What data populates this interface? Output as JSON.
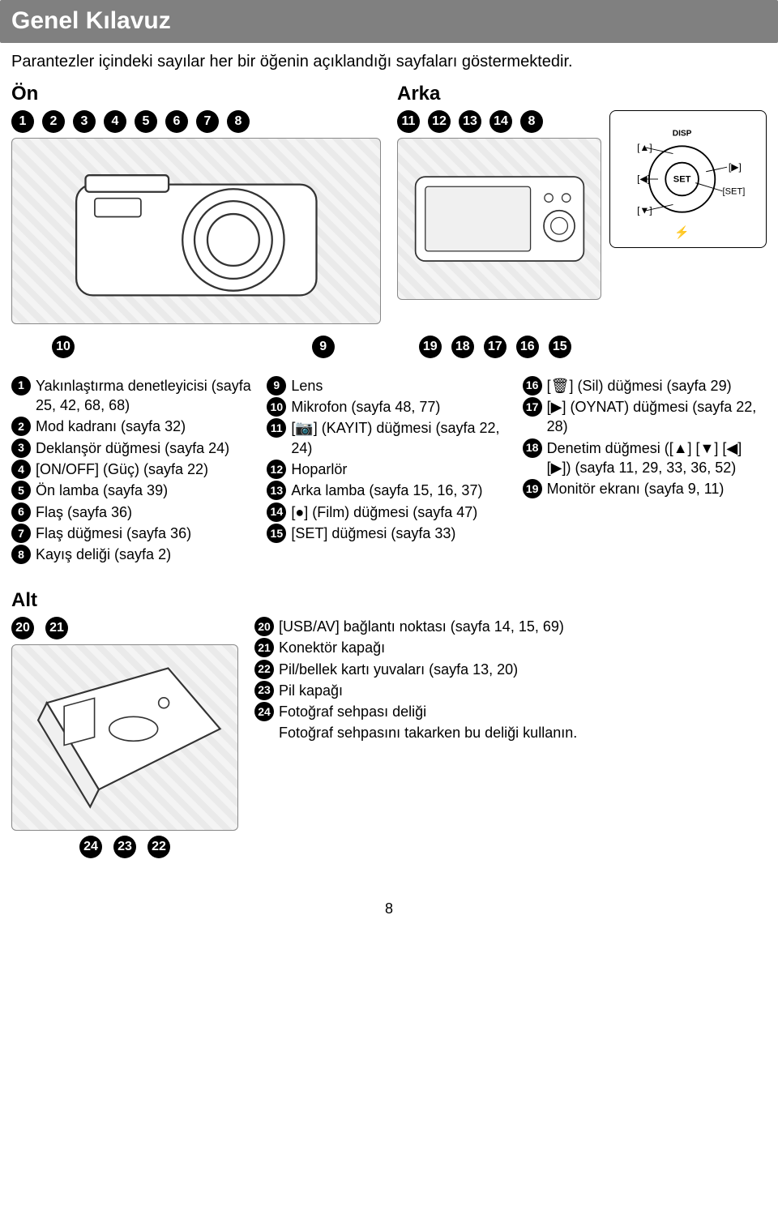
{
  "title": "Genel Kılavuz",
  "intro": "Parantezler içindeki sayılar her bir öğenin açıklandığı sayfaları göstermektedir.",
  "front_label": "Ön",
  "back_label": "Arka",
  "front_nums": [
    "1",
    "2",
    "3",
    "4",
    "5",
    "6",
    "7",
    "8"
  ],
  "back_nums": [
    "11",
    "12",
    "13",
    "14",
    "8"
  ],
  "dpad": {
    "up": "[▲]",
    "down": "[▼]",
    "left": "[◀]",
    "right": "[▶]",
    "disp": "DISP",
    "set_center": "SET",
    "set_lbl": "[SET]",
    "flash": "⚡"
  },
  "mid_left": [
    "10",
    "9"
  ],
  "mid_right": [
    "19",
    "18",
    "17",
    "16",
    "15"
  ],
  "left_col": [
    {
      "n": "1",
      "t": "Yakınlaştırma denetleyicisi (sayfa 25, 42, 68, 68)"
    },
    {
      "n": "2",
      "t": "Mod kadranı (sayfa 32)"
    },
    {
      "n": "3",
      "t": "Deklanşör düğmesi (sayfa 24)"
    },
    {
      "n": "4",
      "t": "[ON/OFF] (Güç) (sayfa 22)"
    },
    {
      "n": "5",
      "t": "Ön lamba (sayfa 39)"
    },
    {
      "n": "6",
      "t": "Flaş (sayfa 36)"
    },
    {
      "n": "7",
      "t": "Flaş düğmesi (sayfa 36)"
    },
    {
      "n": "8",
      "t": "Kayış deliği (sayfa 2)"
    }
  ],
  "mid_col": [
    {
      "n": "9",
      "t": "Lens"
    },
    {
      "n": "10",
      "t": "Mikrofon (sayfa 48, 77)"
    },
    {
      "n": "11",
      "t": "[📷] (KAYIT) düğmesi (sayfa 22, 24)"
    },
    {
      "n": "12",
      "t": "Hoparlör"
    },
    {
      "n": "13",
      "t": "Arka lamba (sayfa 15, 16, 37)"
    },
    {
      "n": "14",
      "t": "[●] (Film) düğmesi (sayfa 47)"
    },
    {
      "n": "15",
      "t": "[SET] düğmesi (sayfa 33)"
    }
  ],
  "right_col": [
    {
      "n": "16",
      "t": "[🗑] (Sil) düğmesi (sayfa 29)"
    },
    {
      "n": "17",
      "t": "[▶] (OYNAT) düğmesi (sayfa 22, 28)"
    },
    {
      "n": "18",
      "t": "Denetim düğmesi ([▲] [▼] [◀] [▶]) (sayfa 11, 29, 33, 36, 52)"
    },
    {
      "n": "19",
      "t": "Monitör ekranı (sayfa 9, 11)"
    }
  ],
  "alt_label": "Alt",
  "alt_top": [
    "20",
    "21"
  ],
  "alt_bot": [
    "24",
    "23",
    "22"
  ],
  "alt_list": [
    {
      "n": "20",
      "t": "[USB/AV] bağlantı noktası (sayfa 14, 15, 69)"
    },
    {
      "n": "21",
      "t": "Konektör kapağı"
    },
    {
      "n": "22",
      "t": "Pil/bellek kartı yuvaları (sayfa 13, 20)"
    },
    {
      "n": "23",
      "t": "Pil kapağı"
    },
    {
      "n": "24",
      "t": "Fotoğraf sehpası deliği"
    }
  ],
  "alt_extra": "Fotoğraf sehpasını takarken bu deliği kullanın.",
  "page": "8"
}
